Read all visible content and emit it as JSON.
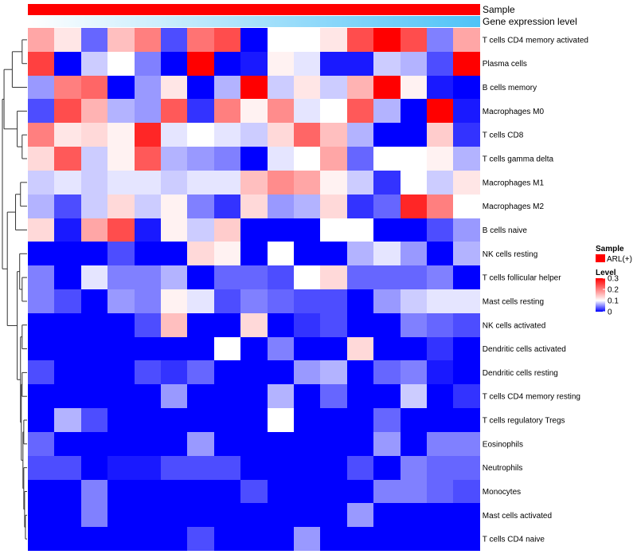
{
  "chart_data": {
    "type": "heatmap",
    "annotations": [
      {
        "name": "Sample",
        "color": "#ff0000"
      },
      {
        "name": "Gene expression level",
        "gradient": [
          "#ffffff",
          "#4fc3f7"
        ]
      }
    ],
    "rows": [
      "T cells CD4 memory activated",
      "Plasma cells",
      "B cells memory",
      "Macrophages M0",
      "T cells CD8",
      "T cells gamma delta",
      "Macrophages M1",
      "Macrophages M2",
      "B cells naive",
      "NK cells resting",
      "T cells follicular helper",
      "Mast cells resting",
      "NK cells activated",
      "Dendritic cells activated",
      "Dendritic cells resting",
      "T cells CD4 memory resting",
      "T cells regulatory  Tregs",
      "Eosinophils",
      "Neutrophils",
      "Monocytes",
      "Mast cells activated",
      "T cells CD4 naive"
    ],
    "values": [
      [
        0.17,
        0.12,
        0.04,
        0.15,
        0.2,
        0.03,
        0.21,
        0.24,
        0.0,
        0.1,
        0.1,
        0.12,
        0.24,
        0.3,
        0.24,
        0.05,
        0.17
      ],
      [
        0.25,
        0.0,
        0.08,
        0.1,
        0.05,
        0.0,
        0.3,
        0.0,
        0.01,
        0.11,
        0.09,
        0.01,
        0.01,
        0.08,
        0.07,
        0.03,
        0.3
      ],
      [
        0.06,
        0.2,
        0.22,
        0.0,
        0.06,
        0.12,
        0.0,
        0.07,
        0.31,
        0.08,
        0.12,
        0.08,
        0.16,
        0.31,
        0.11,
        0.01,
        0.0
      ],
      [
        0.03,
        0.24,
        0.16,
        0.07,
        0.06,
        0.23,
        0.02,
        0.2,
        0.11,
        0.19,
        0.09,
        0.1,
        0.23,
        0.07,
        0.0,
        0.31,
        0.01
      ],
      [
        0.2,
        0.12,
        0.13,
        0.11,
        0.27,
        0.09,
        0.1,
        0.09,
        0.08,
        0.13,
        0.22,
        0.15,
        0.07,
        0.0,
        0.0,
        0.14,
        0.02
      ],
      [
        0.13,
        0.23,
        0.08,
        0.11,
        0.23,
        0.07,
        0.06,
        0.05,
        0.0,
        0.09,
        0.1,
        0.17,
        0.04,
        0.1,
        0.1,
        0.11,
        0.07
      ],
      [
        0.08,
        0.09,
        0.08,
        0.09,
        0.09,
        0.08,
        0.09,
        0.09,
        0.15,
        0.19,
        0.17,
        0.11,
        0.08,
        0.02,
        0.1,
        0.08,
        0.12
      ],
      [
        0.07,
        0.03,
        0.08,
        0.13,
        0.08,
        0.11,
        0.05,
        0.02,
        0.13,
        0.06,
        0.07,
        0.13,
        0.02,
        0.04,
        0.27,
        0.2,
        0.1
      ],
      [
        0.13,
        0.01,
        0.17,
        0.24,
        0.01,
        0.11,
        0.08,
        0.14,
        0.0,
        0.0,
        0.0,
        0.1,
        0.1,
        0.0,
        0.0,
        0.03,
        0.06
      ],
      [
        0.0,
        0.0,
        0.0,
        0.03,
        0.0,
        0.0,
        0.13,
        0.11,
        0.0,
        0.1,
        0.0,
        0.0,
        0.07,
        0.09,
        0.06,
        0.0,
        0.07
      ],
      [
        0.05,
        0.0,
        0.09,
        0.05,
        0.05,
        0.07,
        0.0,
        0.04,
        0.04,
        0.03,
        0.1,
        0.13,
        0.04,
        0.04,
        0.04,
        0.05,
        0.0
      ],
      [
        0.05,
        0.03,
        0.0,
        0.06,
        0.05,
        0.11,
        0.09,
        0.03,
        0.05,
        0.04,
        0.03,
        0.03,
        0.0,
        0.06,
        0.08,
        0.09,
        0.09
      ],
      [
        0.0,
        0.0,
        0.0,
        0.0,
        0.03,
        0.15,
        0.0,
        0.0,
        0.13,
        0.0,
        0.02,
        0.03,
        0.0,
        0.0,
        0.05,
        0.04,
        0.03
      ],
      [
        0.0,
        0.0,
        0.0,
        0.0,
        0.0,
        0.0,
        0.0,
        0.1,
        0.0,
        0.05,
        0.0,
        0.0,
        0.13,
        0.0,
        0.0,
        0.02,
        0.0
      ],
      [
        0.03,
        0.0,
        0.0,
        0.0,
        0.03,
        0.02,
        0.04,
        0.0,
        0.0,
        0.0,
        0.06,
        0.07,
        0.0,
        0.04,
        0.05,
        0.01,
        0.0
      ],
      [
        0.0,
        0.0,
        0.0,
        0.0,
        0.0,
        0.06,
        0.0,
        0.0,
        0.0,
        0.07,
        0.0,
        0.04,
        0.0,
        0.0,
        0.08,
        0.0,
        0.02
      ],
      [
        0.0,
        0.07,
        0.03,
        0.0,
        0.0,
        0.0,
        0.0,
        0.0,
        0.0,
        0.1,
        0.0,
        0.0,
        0.0,
        0.04,
        0.0,
        0.0,
        0.0
      ],
      [
        0.04,
        0.0,
        0.0,
        0.0,
        0.0,
        0.0,
        0.06,
        0.0,
        0.0,
        0.0,
        0.0,
        0.0,
        0.0,
        0.06,
        0.0,
        0.05,
        0.05
      ],
      [
        0.03,
        0.03,
        0.0,
        0.01,
        0.01,
        0.03,
        0.03,
        0.03,
        0.0,
        0.0,
        0.0,
        0.0,
        0.03,
        0.0,
        0.05,
        0.04,
        0.04
      ],
      [
        0.0,
        0.0,
        0.05,
        0.0,
        0.0,
        0.0,
        0.0,
        0.0,
        0.03,
        0.0,
        0.0,
        0.0,
        0.0,
        0.05,
        0.05,
        0.04,
        0.03
      ],
      [
        0.0,
        0.0,
        0.05,
        0.0,
        0.0,
        0.0,
        0.0,
        0.0,
        0.0,
        0.0,
        0.0,
        0.0,
        0.06,
        0.0,
        0.0,
        0.0,
        0.0
      ],
      [
        0.0,
        0.0,
        0.0,
        0.0,
        0.0,
        0.0,
        0.03,
        0.0,
        0.0,
        0.0,
        0.06,
        0.0,
        0.0,
        0.0,
        0.0,
        0.0,
        0.0
      ]
    ],
    "color_scale": {
      "min": 0,
      "mid": 0.1,
      "max": 0.3,
      "low": "#0000ff",
      "middle": "#ffffff",
      "high": "#ff0000"
    },
    "legend": {
      "sample": {
        "title": "Sample",
        "label": "ARL(+)",
        "color": "#ff0000"
      },
      "level": {
        "title": "Level",
        "ticks": [
          "0.3",
          "0.2",
          "0.1",
          "0"
        ],
        "tick_values": [
          0.3,
          0.2,
          0.1,
          0
        ]
      }
    },
    "placement": "right"
  }
}
